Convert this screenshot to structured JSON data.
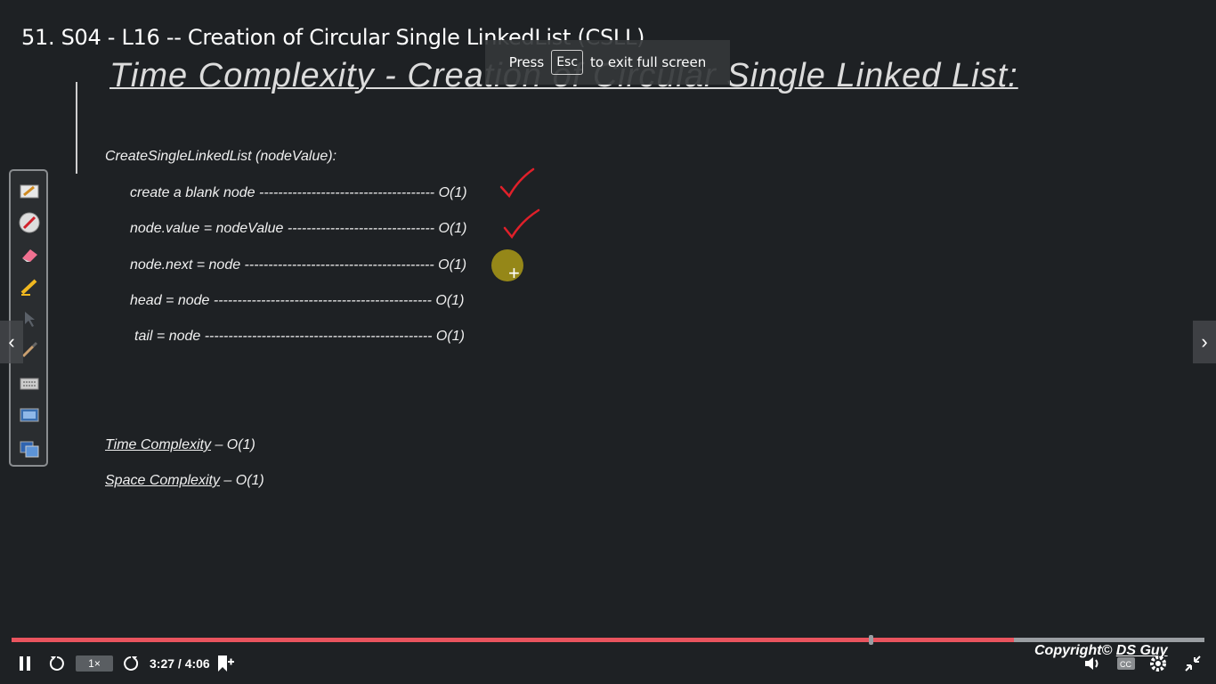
{
  "video": {
    "title": "51. S04 - L16 -- Creation of Circular Single LinkedList (CSLL)"
  },
  "fullscreen_banner": {
    "prefix": "Press",
    "key": "Esc",
    "suffix": "to exit full screen"
  },
  "slide": {
    "title": "Time Complexity - Creation of Circular Single Linked List:",
    "function_header": "CreateSingleLinkedList (nodeValue):",
    "lines": [
      {
        "text": "create a blank node ------------------------------------- O(1)"
      },
      {
        "text": "node.value = nodeValue ------------------------------- O(1)"
      },
      {
        "text": "node.next = node ---------------------------------------- O(1)"
      },
      {
        "text": "head = node ---------------------------------------------- O(1)"
      },
      {
        "text": "tail = node ------------------------------------------------ O(1)"
      }
    ],
    "time_complexity_label": "Time Complexity",
    "time_complexity_value": " – O(1)",
    "space_complexity_label": "Space Complexity",
    "space_complexity_value": " – O(1)",
    "annotation_color": "#e0202a"
  },
  "toolbar": {
    "tools": [
      "pen-tool-icon",
      "laser-pointer-icon",
      "eraser-icon",
      "highlighter-icon",
      "arrow-pointer-icon",
      "brush-icon",
      "keyboard-icon",
      "screen-capture-icon",
      "whiteboard-icon"
    ]
  },
  "player": {
    "speed": "1×",
    "time": "3:27 / 4:06",
    "progress_fraction": 0.84,
    "buffered_fraction": 0.725,
    "accent": "#e9545e"
  },
  "watermark": {
    "prefix": "Copyright©",
    "author": "DS Guy"
  }
}
